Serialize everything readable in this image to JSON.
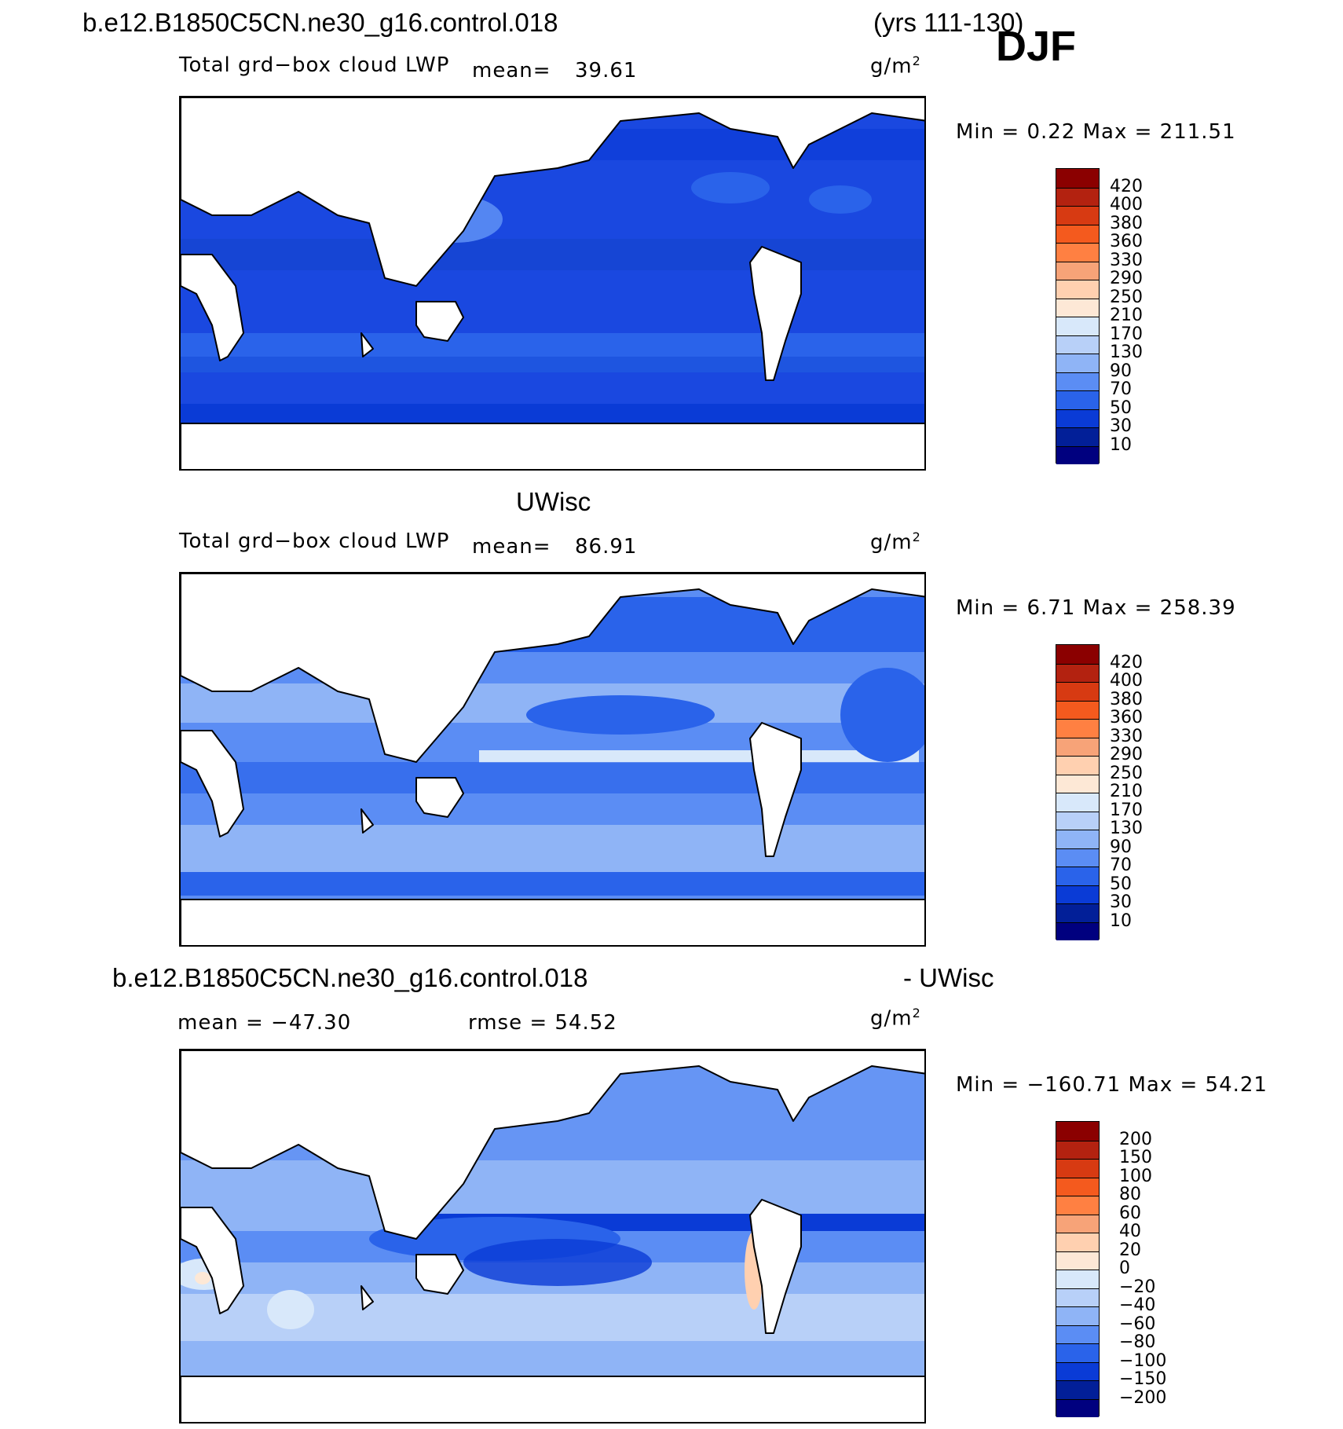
{
  "header": {
    "case_name": "b.e12.B1850C5CN.ne30_g16.control.018",
    "years": "(yrs 111-130)",
    "season": "DJF"
  },
  "panels": [
    {
      "id": "model",
      "variable_title": "Total grd−box cloud LWP",
      "mean_label": "mean=",
      "mean_value": "39.61",
      "units_base": "g/m",
      "units_exp": "2",
      "min_max": "Min =    0.22 Max = 211.51",
      "colorbar": {
        "labels": [
          "420",
          "400",
          "380",
          "360",
          "330",
          "290",
          "250",
          "210",
          "170",
          "130",
          "90",
          "70",
          "50",
          "30",
          "10"
        ],
        "colors": [
          "#8b0000",
          "#b32210",
          "#d73a12",
          "#f45a1e",
          "#ff8042",
          "#f7a378",
          "#ffd0b0",
          "#fde8d6",
          "#d8e8fa",
          "#b8d0f8",
          "#8fb4f6",
          "#5b8df4",
          "#2a63ea",
          "#0a3bd6",
          "#021f98",
          "#00007f"
        ]
      }
    },
    {
      "id": "obs",
      "section_title": "UWisc",
      "variable_title": "Total grd−box cloud LWP",
      "mean_label": "mean=",
      "mean_value": "86.91",
      "units_base": "g/m",
      "units_exp": "2",
      "min_max": "Min =    6.71 Max = 258.39",
      "colorbar": {
        "labels": [
          "420",
          "400",
          "380",
          "360",
          "330",
          "290",
          "250",
          "210",
          "170",
          "130",
          "90",
          "70",
          "50",
          "30",
          "10"
        ],
        "colors": [
          "#8b0000",
          "#b32210",
          "#d73a12",
          "#f45a1e",
          "#ff8042",
          "#f7a378",
          "#ffd0b0",
          "#fde8d6",
          "#d8e8fa",
          "#b8d0f8",
          "#8fb4f6",
          "#5b8df4",
          "#2a63ea",
          "#0a3bd6",
          "#021f98",
          "#00007f"
        ]
      }
    },
    {
      "id": "diff",
      "section_title_left": "b.e12.B1850C5CN.ne30_g16.control.018",
      "section_title_right": "- UWisc",
      "mean_text": "mean = −47.30",
      "rmse_text": "rmse =   54.52",
      "units_base": "g/m",
      "units_exp": "2",
      "min_max": "Min = −160.71 Max =   54.21",
      "colorbar": {
        "labels": [
          "200",
          "150",
          "100",
          "80",
          "60",
          "40",
          "20",
          "0",
          "−20",
          "−40",
          "−60",
          "−80",
          "−100",
          "−150",
          "−200"
        ],
        "colors": [
          "#8b0000",
          "#b32210",
          "#d73a12",
          "#f45a1e",
          "#ff8042",
          "#f7a378",
          "#ffd0b0",
          "#fde8d6",
          "#d8e8fa",
          "#b8d0f8",
          "#8fb4f6",
          "#5b8df4",
          "#2a63ea",
          "#0a3bd6",
          "#021f98",
          "#00007f"
        ]
      }
    }
  ],
  "map_style": {
    "land_color": "#ffffff",
    "coast_color": "#000000"
  }
}
